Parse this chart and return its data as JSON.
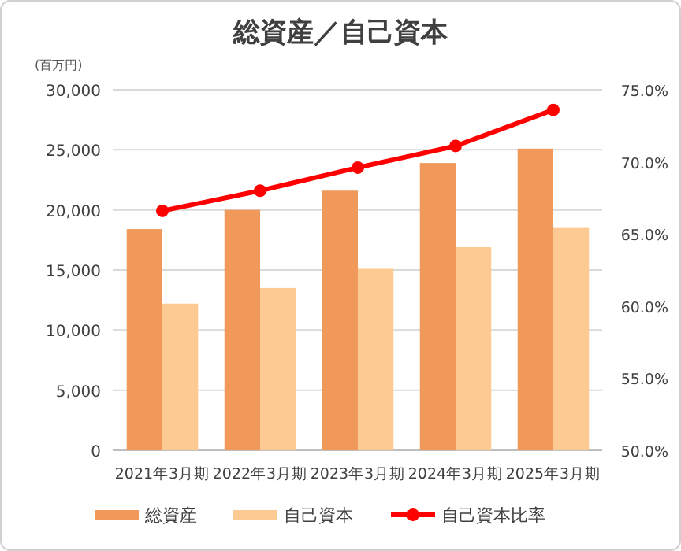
{
  "chart_data": {
    "type": "bar",
    "title": "総資産／自己資本",
    "ylabel": "(百万円)",
    "categories": [
      "2021年3月期",
      "2022年3月期",
      "2023年3月期",
      "2024年3月期",
      "2025年3月期"
    ],
    "series": [
      {
        "name": "総資産",
        "color": "#f0995a",
        "values": [
          18400,
          20000,
          21600,
          23900,
          25100
        ]
      },
      {
        "name": "自己資本",
        "color": "#fdca94",
        "values": [
          12200,
          13500,
          15100,
          16900,
          18500
        ]
      },
      {
        "name": "自己資本比率",
        "type": "line",
        "axis": "y2",
        "color": "#ff0000",
        "marker": "circle",
        "values": [
          66.6,
          68.0,
          69.6,
          71.1,
          73.6
        ]
      }
    ],
    "ylim": [
      0,
      30000
    ],
    "yticks": [
      {
        "value": 0,
        "label": "0"
      },
      {
        "value": 5000,
        "label": "5,000"
      },
      {
        "value": 10000,
        "label": "10,000"
      },
      {
        "value": 15000,
        "label": "15,000"
      },
      {
        "value": 20000,
        "label": "20,000"
      },
      {
        "value": 25000,
        "label": "25,000"
      },
      {
        "value": 30000,
        "label": "30,000"
      }
    ],
    "y2lim": [
      50,
      75
    ],
    "y2ticks": [
      {
        "value": 50,
        "label": "50.0%"
      },
      {
        "value": 55,
        "label": "55.0%"
      },
      {
        "value": 60,
        "label": "60.0%"
      },
      {
        "value": 65,
        "label": "65.0%"
      },
      {
        "value": 70,
        "label": "70.0%"
      },
      {
        "value": 75,
        "label": "75.0%"
      }
    ],
    "grid": "y",
    "legend": "bottom"
  }
}
